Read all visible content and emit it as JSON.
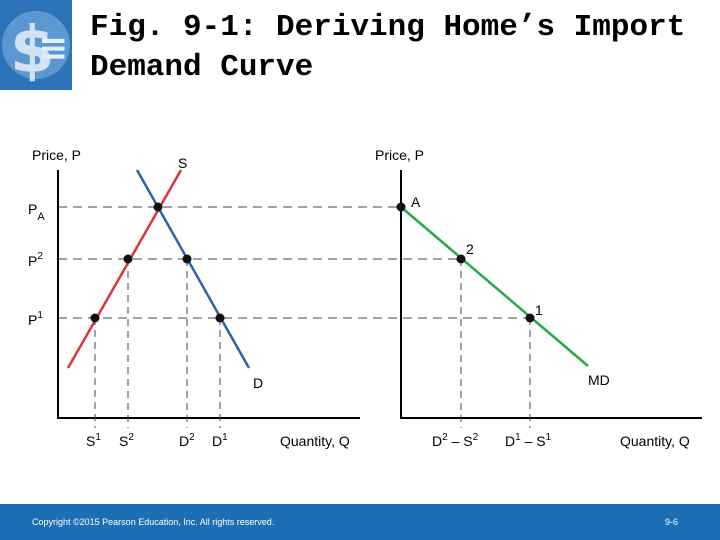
{
  "header": {
    "title_line1": "Fig. 9-1: Deriving Home’s Import",
    "title_line2": "Demand Curve"
  },
  "left_graph": {
    "y_axis_label": "Price, P",
    "x_axis_label": "Quantity, Q",
    "supply_label": "S",
    "demand_label": "D",
    "price_labels": {
      "pa": "PA",
      "p2": "P2",
      "p1": "P1"
    },
    "quantity_labels": {
      "s1": "S1",
      "s2": "S2",
      "d2": "D2",
      "d1": "D1"
    }
  },
  "right_graph": {
    "y_axis_label": "Price, P",
    "x_axis_label": "Quantity, Q",
    "curve_label": "MD",
    "point_labels": {
      "a": "A",
      "two": "2",
      "one": "1"
    },
    "quantity_labels": {
      "q2": "D2 – S2",
      "q1": "D1 – S1"
    }
  },
  "footer": {
    "copyright": "Copyright ©2015 Pearson Education, Inc. All rights reserved.",
    "page_number": "9-6"
  },
  "colors": {
    "supply": "#e0323c",
    "demand": "#2a64ad",
    "import_demand": "#22aa4a",
    "footer": "#1c6fb5"
  }
}
